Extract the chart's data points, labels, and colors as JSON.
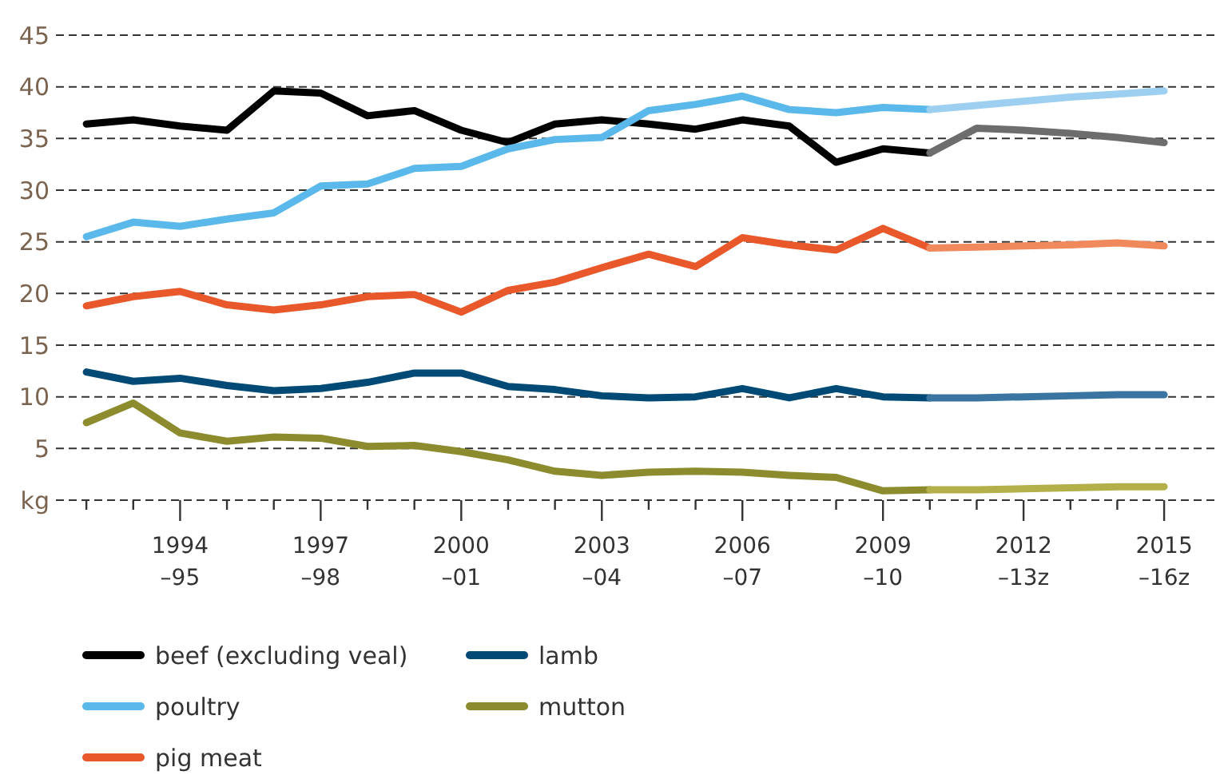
{
  "chart_data": {
    "type": "line",
    "categories": [
      null,
      null,
      "1994\n–95",
      null,
      null,
      "1997\n–98",
      null,
      null,
      "2000\n–01",
      null,
      null,
      "2003\n–04",
      null,
      null,
      "2006\n–07",
      null,
      null,
      "2009\n–10",
      null,
      null,
      "2012\n–13z",
      null,
      null,
      "2015\n–16z"
    ],
    "series": [
      {
        "name": "beef (excluding veal)",
        "color": "#000000",
        "values": [
          36.4,
          36.8,
          36.2,
          35.8,
          39.6,
          39.4,
          37.2,
          37.7,
          35.8,
          34.6,
          36.4,
          36.8,
          36.4,
          35.9,
          36.8,
          36.2,
          32.7,
          34.0,
          33.6,
          null,
          null,
          null,
          null,
          null
        ]
      },
      {
        "name": "poultry",
        "color": "#5bb8ea",
        "values": [
          25.5,
          26.9,
          26.5,
          27.2,
          27.8,
          30.4,
          30.6,
          32.1,
          32.3,
          34.0,
          34.9,
          35.1,
          37.7,
          38.3,
          39.1,
          37.8,
          37.5,
          38.0,
          37.8,
          null,
          null,
          null,
          null,
          null
        ]
      },
      {
        "name": "pig meat",
        "color": "#e8582a",
        "values": [
          18.8,
          19.7,
          20.2,
          18.9,
          18.4,
          18.9,
          19.7,
          19.9,
          18.2,
          20.3,
          21.1,
          22.5,
          23.8,
          22.6,
          25.4,
          24.7,
          24.2,
          26.3,
          24.4,
          null,
          null,
          null,
          null,
          null
        ]
      },
      {
        "name": "lamb",
        "color": "#004a75",
        "values": [
          12.4,
          11.5,
          11.8,
          11.1,
          10.6,
          10.8,
          11.4,
          12.3,
          12.3,
          11.0,
          10.7,
          10.1,
          9.9,
          10.0,
          10.8,
          9.9,
          10.8,
          10.0,
          9.9,
          null,
          null,
          null,
          null,
          null
        ]
      },
      {
        "name": "mutton",
        "color": "#8c8c2e",
        "values": [
          7.5,
          9.4,
          6.5,
          5.7,
          6.1,
          6.0,
          5.2,
          5.3,
          4.7,
          3.9,
          2.8,
          2.4,
          2.7,
          2.8,
          2.7,
          2.4,
          2.2,
          0.9,
          1.0,
          null,
          null,
          null,
          null,
          null
        ]
      },
      {
        "color": "#6d6d6d",
        "values": [
          null,
          null,
          null,
          null,
          null,
          null,
          null,
          null,
          null,
          null,
          null,
          null,
          null,
          null,
          null,
          null,
          null,
          null,
          33.6,
          36.0,
          35.8,
          35.5,
          35.1,
          34.6
        ]
      },
      {
        "color": "#9dd0f0",
        "values": [
          null,
          null,
          null,
          null,
          null,
          null,
          null,
          null,
          null,
          null,
          null,
          null,
          null,
          null,
          null,
          null,
          null,
          null,
          37.8,
          38.2,
          38.6,
          39.0,
          39.3,
          39.6
        ]
      },
      {
        "color": "#f08a5d",
        "values": [
          null,
          null,
          null,
          null,
          null,
          null,
          null,
          null,
          null,
          null,
          null,
          null,
          null,
          null,
          null,
          null,
          null,
          null,
          24.4,
          24.5,
          24.6,
          24.7,
          24.9,
          24.6
        ]
      },
      {
        "color": "#3a74a0",
        "values": [
          null,
          null,
          null,
          null,
          null,
          null,
          null,
          null,
          null,
          null,
          null,
          null,
          null,
          null,
          null,
          null,
          null,
          null,
          9.9,
          9.9,
          10.0,
          10.1,
          10.2,
          10.2
        ]
      },
      {
        "color": "#b3b04a",
        "values": [
          null,
          null,
          null,
          null,
          null,
          null,
          null,
          null,
          null,
          null,
          null,
          null,
          null,
          null,
          null,
          null,
          null,
          null,
          1.0,
          1.0,
          1.1,
          1.2,
          1.3,
          1.3
        ]
      }
    ],
    "ylim": [
      0,
      45
    ],
    "yticks": [
      {
        "value": 0,
        "label": "kg"
      },
      5,
      10,
      15,
      20,
      25,
      30,
      35,
      40,
      45
    ],
    "grid": "y",
    "legend": "bottom",
    "marker": "none",
    "line_style": "solid"
  }
}
